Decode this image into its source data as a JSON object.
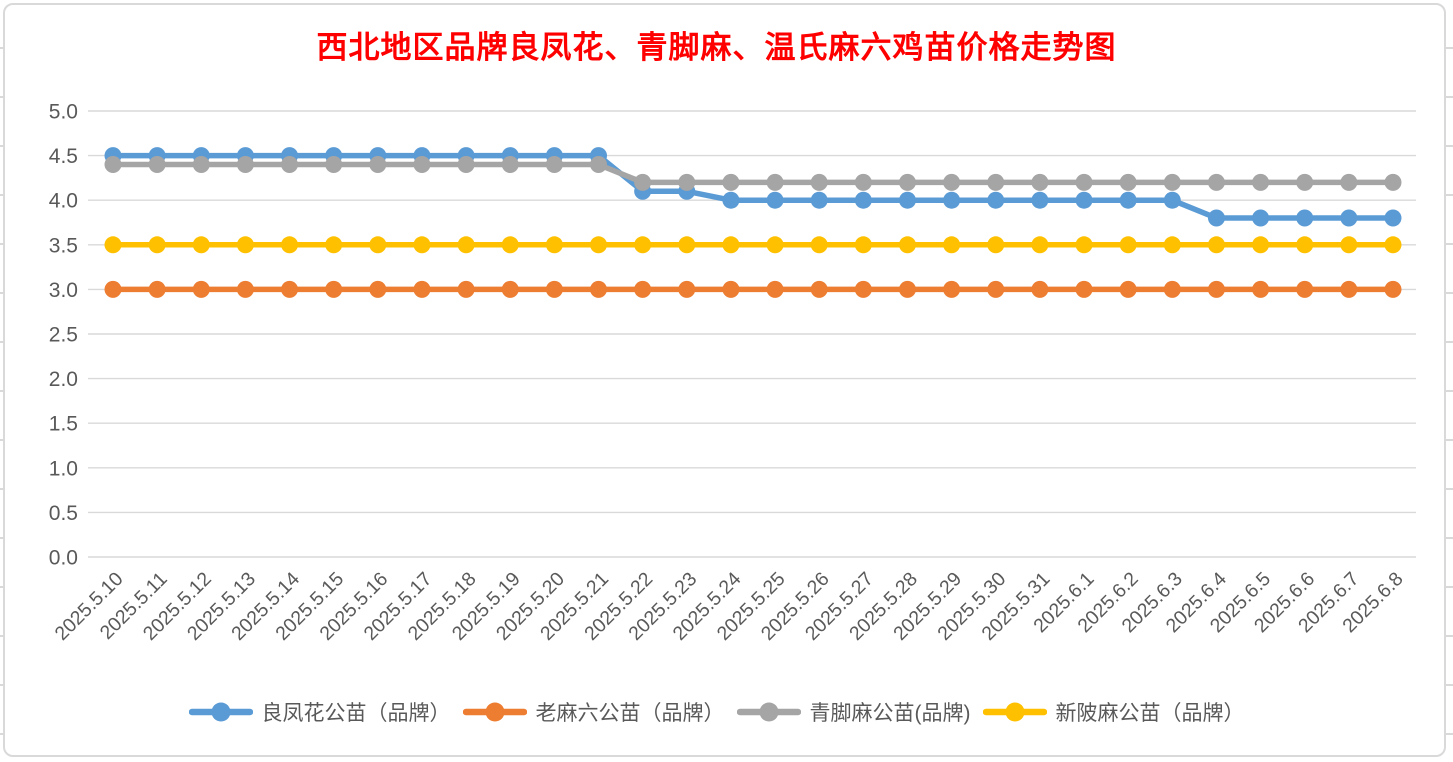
{
  "title": {
    "text": "西北地区品牌良凤花、青脚麻、温氏麻六鸡苗价格走势图",
    "color": "#FF0000"
  },
  "colors": {
    "gridline": "#D9D9D9",
    "axis_text": "#595959",
    "legend_text": "#595959",
    "frame_border": "#D9D9D9",
    "background": "#FFFFFF"
  },
  "chart_data": {
    "type": "line",
    "title": "西北地区品牌良凤花、青脚麻、温氏麻六鸡苗价格走势图",
    "xlabel": "",
    "ylabel": "",
    "ylim": [
      0.0,
      5.0
    ],
    "ytick_step": 0.5,
    "ytick_labels": [
      "0.0",
      "0.5",
      "1.0",
      "1.5",
      "2.0",
      "2.5",
      "3.0",
      "3.5",
      "4.0",
      "4.5",
      "5.0"
    ],
    "grid": true,
    "legend_position": "bottom",
    "categories": [
      "2025.5.10",
      "2025.5.11",
      "2025.5.12",
      "2025.5.13",
      "2025.5.14",
      "2025.5.15",
      "2025.5.16",
      "2025.5.17",
      "2025.5.18",
      "2025.5.19",
      "2025.5.20",
      "2025.5.21",
      "2025.5.22",
      "2025.5.23",
      "2025.5.24",
      "2025.5.25",
      "2025.5.26",
      "2025.5.27",
      "2025.5.28",
      "2025.5.29",
      "2025.5.30",
      "2025.5.31",
      "2025.6.1",
      "2025.6.2",
      "2025.6.3",
      "2025.6.4",
      "2025.6.5",
      "2025.6.6",
      "2025.6.7",
      "2025.6.8"
    ],
    "series": [
      {
        "name": "良凤花公苗（品牌）",
        "color": "#5B9BD5",
        "values": [
          4.5,
          4.5,
          4.5,
          4.5,
          4.5,
          4.5,
          4.5,
          4.5,
          4.5,
          4.5,
          4.5,
          4.5,
          4.1,
          4.1,
          4.0,
          4.0,
          4.0,
          4.0,
          4.0,
          4.0,
          4.0,
          4.0,
          4.0,
          4.0,
          4.0,
          3.8,
          3.8,
          3.8,
          3.8,
          3.8
        ]
      },
      {
        "name": "老麻六公苗（品牌）",
        "color": "#ED7D31",
        "values": [
          3.0,
          3.0,
          3.0,
          3.0,
          3.0,
          3.0,
          3.0,
          3.0,
          3.0,
          3.0,
          3.0,
          3.0,
          3.0,
          3.0,
          3.0,
          3.0,
          3.0,
          3.0,
          3.0,
          3.0,
          3.0,
          3.0,
          3.0,
          3.0,
          3.0,
          3.0,
          3.0,
          3.0,
          3.0,
          3.0
        ]
      },
      {
        "name": "青脚麻公苗(品牌)",
        "color": "#A5A5A5",
        "values": [
          4.4,
          4.4,
          4.4,
          4.4,
          4.4,
          4.4,
          4.4,
          4.4,
          4.4,
          4.4,
          4.4,
          4.4,
          4.2,
          4.2,
          4.2,
          4.2,
          4.2,
          4.2,
          4.2,
          4.2,
          4.2,
          4.2,
          4.2,
          4.2,
          4.2,
          4.2,
          4.2,
          4.2,
          4.2,
          4.2
        ]
      },
      {
        "name": "新陂麻公苗（品牌）",
        "color": "#FFC000",
        "values": [
          3.5,
          3.5,
          3.5,
          3.5,
          3.5,
          3.5,
          3.5,
          3.5,
          3.5,
          3.5,
          3.5,
          3.5,
          3.5,
          3.5,
          3.5,
          3.5,
          3.5,
          3.5,
          3.5,
          3.5,
          3.5,
          3.5,
          3.5,
          3.5,
          3.5,
          3.5,
          3.5,
          3.5,
          3.5,
          3.5
        ]
      }
    ]
  }
}
